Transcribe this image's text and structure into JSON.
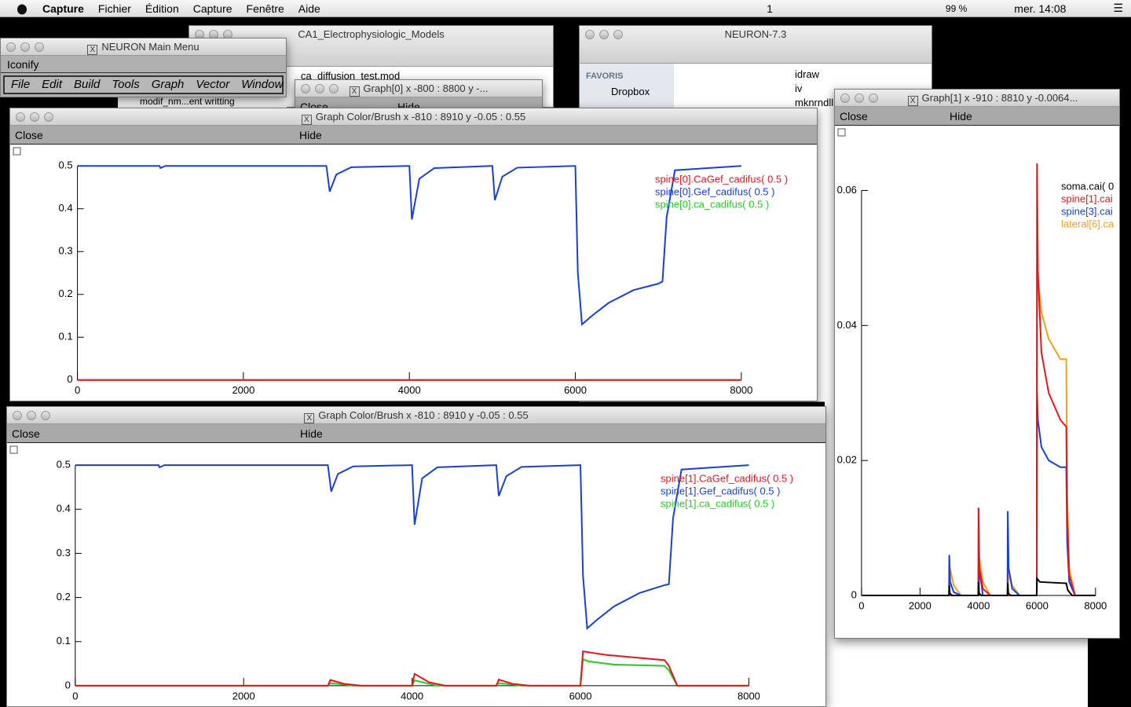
{
  "menubar": {
    "app": "Capture",
    "menus": [
      "Fichier",
      "Édition",
      "Capture",
      "Fenêtre",
      "Aide"
    ],
    "status": [
      "1",
      "99 %",
      "mer. 14:08"
    ]
  },
  "finder_windows": [
    {
      "title": "CA1_Electrophysiologic_Models",
      "items": [
        "ca_diffusion_test.mod",
        "modif_nm...ent writting"
      ]
    },
    {
      "title": "NEURON-7.3",
      "sidebar_header": "FAVORIS",
      "sidebar": [
        "Dropbox"
      ],
      "items": [
        "idraw",
        "iv",
        "mknrndll"
      ]
    }
  ],
  "main_menu": {
    "title": "NEURON Main Menu",
    "button": "Iconify",
    "menus": [
      "File",
      "Edit",
      "Build",
      "Tools",
      "Graph",
      "Vector",
      "Window"
    ]
  },
  "graph0": {
    "title": "Graph[0]  x -800 : 8800  y -...",
    "buttons": [
      "Close",
      "Hide"
    ]
  },
  "graphs": [
    {
      "title": "Graph Color/Brush x -810 : 8910  y -0.05 : 0.55",
      "buttons": [
        "Close",
        "Hide"
      ],
      "xlim": [
        -810,
        8910
      ],
      "ylim": [
        -0.05,
        0.55
      ],
      "xticks": [
        0,
        2000,
        4000,
        6000,
        8000
      ],
      "yticks": [
        0,
        0.1,
        0.2,
        0.3,
        0.4,
        0.5
      ],
      "series": [
        {
          "name": "spine[0].CaGef_cadifus( 0.5 )",
          "color": "#e8141c",
          "x": [
            0,
            8000
          ],
          "values": [
            0,
            0
          ]
        },
        {
          "name": "spine[0].Gef_cadifus( 0.5 )",
          "color": "#1a3fd8",
          "x": [
            0,
            990,
            1000,
            1060,
            2990,
            3000,
            3040,
            3120,
            3300,
            3990,
            4000,
            4030,
            4120,
            4300,
            4990,
            5000,
            5030,
            5120,
            5300,
            5990,
            6000,
            6030,
            6080,
            6200,
            6400,
            6700,
            7000,
            7050,
            7100,
            7200,
            8000
          ],
          "values": [
            0.5,
            0.5,
            0.495,
            0.5,
            0.5,
            0.5,
            0.44,
            0.48,
            0.497,
            0.5,
            0.5,
            0.375,
            0.47,
            0.495,
            0.5,
            0.5,
            0.42,
            0.475,
            0.496,
            0.5,
            0.5,
            0.25,
            0.13,
            0.15,
            0.18,
            0.21,
            0.225,
            0.23,
            0.38,
            0.49,
            0.5
          ]
        },
        {
          "name": "spine[0].ca_cadifus( 0.5 )",
          "color": "#22cc22",
          "x": [
            0,
            8000
          ],
          "values": [
            0,
            0
          ]
        }
      ]
    },
    {
      "title": "Graph Color/Brush x -810 : 8910  y -0.05 : 0.55",
      "buttons": [
        "Close",
        "Hide"
      ],
      "xlim": [
        -810,
        8910
      ],
      "ylim": [
        -0.05,
        0.55
      ],
      "xticks": [
        0,
        2000,
        4000,
        6000,
        8000
      ],
      "yticks": [
        0,
        0.1,
        0.2,
        0.3,
        0.4,
        0.5
      ],
      "series": [
        {
          "name": "spine[1].CaGef_cadifus( 0.5 )",
          "color": "#e8141c",
          "x": [
            0,
            3000,
            3030,
            3200,
            3400,
            4000,
            4030,
            4200,
            4400,
            5000,
            5030,
            5200,
            5400,
            6000,
            6030,
            6300,
            7000,
            7050,
            7150,
            8000
          ],
          "values": [
            0,
            0,
            0.013,
            0.004,
            0,
            0,
            0.027,
            0.008,
            0,
            0,
            0.014,
            0.004,
            0,
            0,
            0.078,
            0.07,
            0.058,
            0.045,
            0,
            0
          ]
        },
        {
          "name": "spine[1].Gef_cadifus( 0.5 )",
          "color": "#1a3fd8",
          "x": [
            0,
            990,
            1000,
            1060,
            2990,
            3000,
            3040,
            3120,
            3300,
            3990,
            4000,
            4030,
            4120,
            4300,
            4990,
            5000,
            5030,
            5120,
            5300,
            5990,
            6000,
            6030,
            6080,
            6200,
            6400,
            6700,
            7000,
            7050,
            7100,
            7200,
            8000
          ],
          "values": [
            0.5,
            0.5,
            0.495,
            0.5,
            0.5,
            0.5,
            0.44,
            0.48,
            0.497,
            0.5,
            0.5,
            0.365,
            0.47,
            0.495,
            0.5,
            0.5,
            0.43,
            0.475,
            0.496,
            0.5,
            0.5,
            0.25,
            0.13,
            0.15,
            0.18,
            0.21,
            0.228,
            0.23,
            0.38,
            0.49,
            0.5
          ]
        },
        {
          "name": "spine[1].ca_cadifus( 0.5 )",
          "color": "#22cc22",
          "x": [
            0,
            3000,
            3030,
            3300,
            4000,
            4030,
            4300,
            5000,
            5030,
            5300,
            6000,
            6030,
            6100,
            6400,
            7000,
            7050,
            7150,
            8000
          ],
          "values": [
            0,
            0,
            0.006,
            0,
            0,
            0.012,
            0,
            0,
            0.006,
            0,
            0,
            0.06,
            0.055,
            0.048,
            0.045,
            0.035,
            0,
            0
          ]
        }
      ]
    },
    {
      "title": "Graph[1]  x -910 : 8810  y -0.0064...",
      "buttons": [
        "Close",
        "Hide"
      ],
      "xlim": [
        -910,
        8810
      ],
      "ylim": [
        -0.0064,
        0.0696
      ],
      "xticks": [
        0,
        2000,
        4000,
        6000,
        8000
      ],
      "yticks": [
        0,
        0.02,
        0.04,
        0.06
      ],
      "series": [
        {
          "name": "soma.cai( 0",
          "color": "#000000",
          "x": [
            0,
            2990,
            3000,
            3020,
            3100,
            3990,
            4000,
            4020,
            4100,
            4990,
            5000,
            5020,
            5100,
            5990,
            6000,
            6100,
            7000,
            7050,
            7200,
            8000
          ],
          "values": [
            0,
            0,
            0.0015,
            0.0003,
            0,
            0,
            0.002,
            0.0003,
            0,
            0,
            0.0018,
            0.0003,
            0,
            0,
            0.0025,
            0.002,
            0.0018,
            0.0008,
            0,
            0
          ]
        },
        {
          "name": "spine[1].cai",
          "color": "#e8141c",
          "x": [
            0,
            3990,
            4000,
            4030,
            4150,
            4400,
            5990,
            6000,
            6030,
            6150,
            6400,
            6800,
            7000,
            7030,
            7100,
            7300,
            8000
          ],
          "values": [
            0,
            0,
            0.013,
            0.004,
            0.001,
            0,
            0,
            0.064,
            0.048,
            0.036,
            0.03,
            0.026,
            0.025,
            0.012,
            0.003,
            0,
            0
          ]
        },
        {
          "name": "spine[3].cai",
          "color": "#1a3fd8",
          "x": [
            0,
            2990,
            3000,
            3030,
            3150,
            3400,
            4000,
            4030,
            4150,
            4990,
            5000,
            5030,
            5150,
            5400,
            5990,
            6000,
            6030,
            6150,
            6400,
            6800,
            7000,
            7030,
            7100,
            7300,
            8000
          ],
          "values": [
            0,
            0,
            0.006,
            0.002,
            0.0005,
            0,
            0,
            0.004,
            0,
            0,
            0.0125,
            0.004,
            0.001,
            0,
            0,
            0.03,
            0.026,
            0.022,
            0.02,
            0.019,
            0.019,
            0.008,
            0.002,
            0,
            0
          ]
        },
        {
          "name": "lateral[6].ca",
          "color": "#f2a01c",
          "x": [
            0,
            3000,
            3030,
            3150,
            3400,
            4000,
            4030,
            4150,
            4400,
            5000,
            5030,
            5150,
            5400,
            5990,
            6000,
            6030,
            6150,
            6400,
            6800,
            7000,
            7030,
            7100,
            7300,
            8000
          ],
          "values": [
            0,
            0,
            0.004,
            0.0015,
            0,
            0,
            0.0055,
            0.002,
            0,
            0,
            0.004,
            0.0015,
            0,
            0,
            0.05,
            0.047,
            0.042,
            0.038,
            0.035,
            0.035,
            0.015,
            0.004,
            0,
            0
          ]
        }
      ]
    }
  ]
}
